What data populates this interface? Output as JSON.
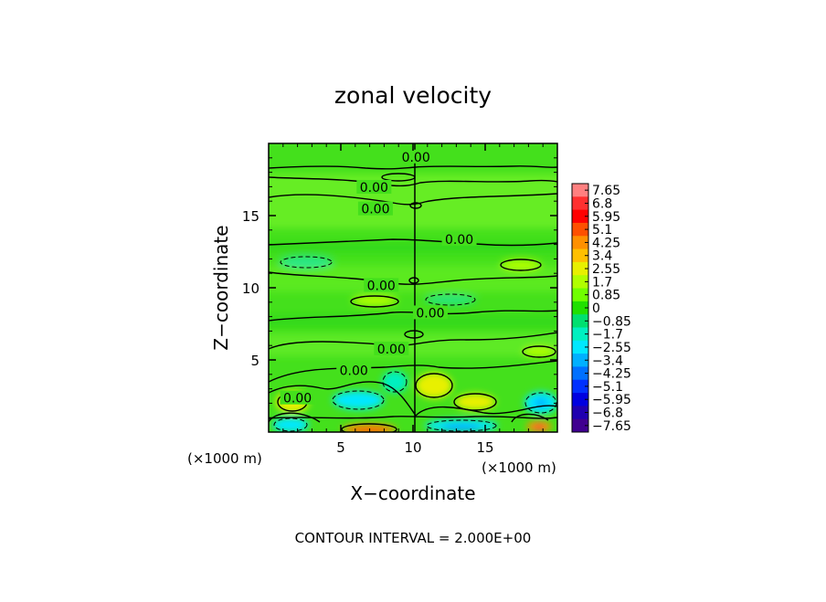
{
  "chart_data": {
    "type": "heatmap",
    "title": "zonal velocity",
    "xlabel": "X−coordinate",
    "ylabel": "Z−coordinate",
    "x_unit_left": "(×1000 m)",
    "x_unit_right": "(×1000 m)",
    "xlim": [
      0,
      20
    ],
    "ylim": [
      0,
      20
    ],
    "x_ticks": [
      5,
      10,
      15
    ],
    "y_ticks": [
      5,
      10,
      15
    ],
    "footer": "CONTOUR INTERVAL = 2.000E+00",
    "colorbar": {
      "labels": [
        "7.65",
        "6.8",
        "5.95",
        "5.1",
        "4.25",
        "3.4",
        "2.55",
        "1.7",
        "0.85",
        "0",
        "−0.85",
        "−1.7",
        "−2.55",
        "−3.4",
        "−4.25",
        "−5.1",
        "−5.95",
        "−6.8",
        "−7.65"
      ],
      "colors": [
        "#ff8080",
        "#ff3030",
        "#ff0000",
        "#ff5000",
        "#ff9000",
        "#ffc000",
        "#e8f000",
        "#b0ff00",
        "#70ff00",
        "#20e000",
        "#00e070",
        "#00f0c0",
        "#00e8ff",
        "#00b0ff",
        "#0070ff",
        "#0030ff",
        "#0000e0",
        "#2000b0",
        "#400090"
      ]
    },
    "contour_labels": [
      {
        "text": "0.00",
        "x": 10.2,
        "z": 19.0
      },
      {
        "text": "0.00",
        "x": 7.3,
        "z": 16.9
      },
      {
        "text": "0.00",
        "x": 7.4,
        "z": 15.4
      },
      {
        "text": "0.00",
        "x": 13.2,
        "z": 13.3
      },
      {
        "text": "0.00",
        "x": 7.8,
        "z": 10.1
      },
      {
        "text": "0.00",
        "x": 11.2,
        "z": 8.2
      },
      {
        "text": "0.00",
        "x": 8.5,
        "z": 5.7
      },
      {
        "text": "0.00",
        "x": 5.9,
        "z": 4.2
      },
      {
        "text": "0.00",
        "x": 2.0,
        "z": 2.3
      }
    ]
  }
}
